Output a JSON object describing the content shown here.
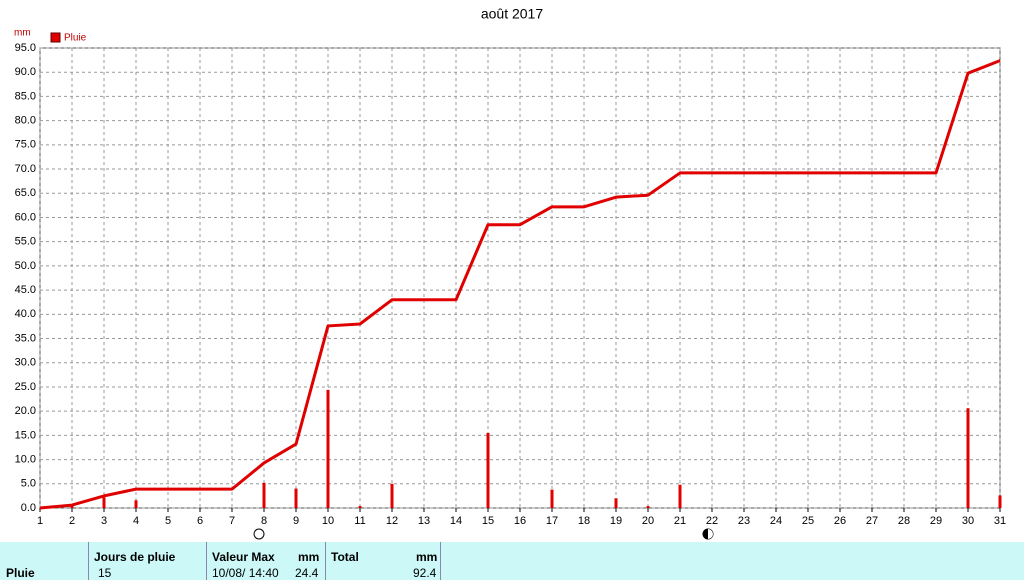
{
  "chart_data": {
    "type": "bar",
    "title": "août 2017",
    "y_unit": "mm",
    "x": [
      1,
      2,
      3,
      4,
      5,
      6,
      7,
      8,
      9,
      10,
      11,
      12,
      13,
      14,
      15,
      16,
      17,
      18,
      19,
      20,
      21,
      22,
      23,
      24,
      25,
      26,
      27,
      28,
      29,
      30,
      31
    ],
    "xlim": [
      1,
      31
    ],
    "xticks": [
      1,
      2,
      3,
      4,
      5,
      6,
      7,
      8,
      9,
      10,
      11,
      12,
      13,
      14,
      15,
      16,
      17,
      18,
      19,
      20,
      21,
      22,
      23,
      24,
      25,
      26,
      27,
      28,
      29,
      30,
      31
    ],
    "ylim": [
      0,
      95
    ],
    "yticks": [
      {
        "value": 0,
        "label": "0.0"
      },
      {
        "value": 5,
        "label": "5.0"
      },
      {
        "value": 10,
        "label": "10.0"
      },
      {
        "value": 15,
        "label": "15.0"
      },
      {
        "value": 20,
        "label": "20.0"
      },
      {
        "value": 25,
        "label": "25.0"
      },
      {
        "value": 30,
        "label": "30.0"
      },
      {
        "value": 35,
        "label": "35.0"
      },
      {
        "value": 40,
        "label": "40.0"
      },
      {
        "value": 45,
        "label": "45.0"
      },
      {
        "value": 50,
        "label": "50.0"
      },
      {
        "value": 55,
        "label": "55.0"
      },
      {
        "value": 60,
        "label": "60.0"
      },
      {
        "value": 65,
        "label": "65.0"
      },
      {
        "value": 70,
        "label": "70.0"
      },
      {
        "value": 75,
        "label": "75.0"
      },
      {
        "value": 80,
        "label": "80.0"
      },
      {
        "value": 85,
        "label": "85.0"
      },
      {
        "value": 90,
        "label": "90.0"
      },
      {
        "value": 95,
        "label": "95.0"
      }
    ],
    "grid": true,
    "legend": "top-left",
    "series": [
      {
        "name": "Pluie",
        "type": "bar",
        "color": "#e00000",
        "values": [
          0,
          0.6,
          2.2,
          1.6,
          0,
          0,
          0,
          5.2,
          4.0,
          24.4,
          0.4,
          5.0,
          0,
          0,
          15.5,
          0,
          3.8,
          0,
          2.0,
          0.4,
          4.8,
          0,
          0,
          0,
          0,
          0,
          0,
          0,
          0,
          20.6,
          2.6
        ]
      },
      {
        "type": "line",
        "color": "#e00000",
        "values": [
          0,
          0.6,
          2.5,
          3.9,
          3.9,
          3.9,
          3.9,
          9.3,
          13.2,
          37.6,
          38.0,
          43.0,
          43.0,
          43.0,
          58.5,
          58.5,
          62.2,
          62.2,
          64.2,
          64.6,
          69.2,
          69.2,
          69.2,
          69.2,
          69.2,
          69.2,
          69.2,
          69.2,
          69.2,
          89.8,
          92.4
        ]
      }
    ]
  },
  "table": {
    "headers": [
      "Jours de pluie",
      "Valeur Max",
      "mm",
      "Total",
      "mm"
    ],
    "row": [
      "Pluie",
      "15",
      "10/08/ 14:40",
      "24.4",
      "92.4"
    ]
  }
}
